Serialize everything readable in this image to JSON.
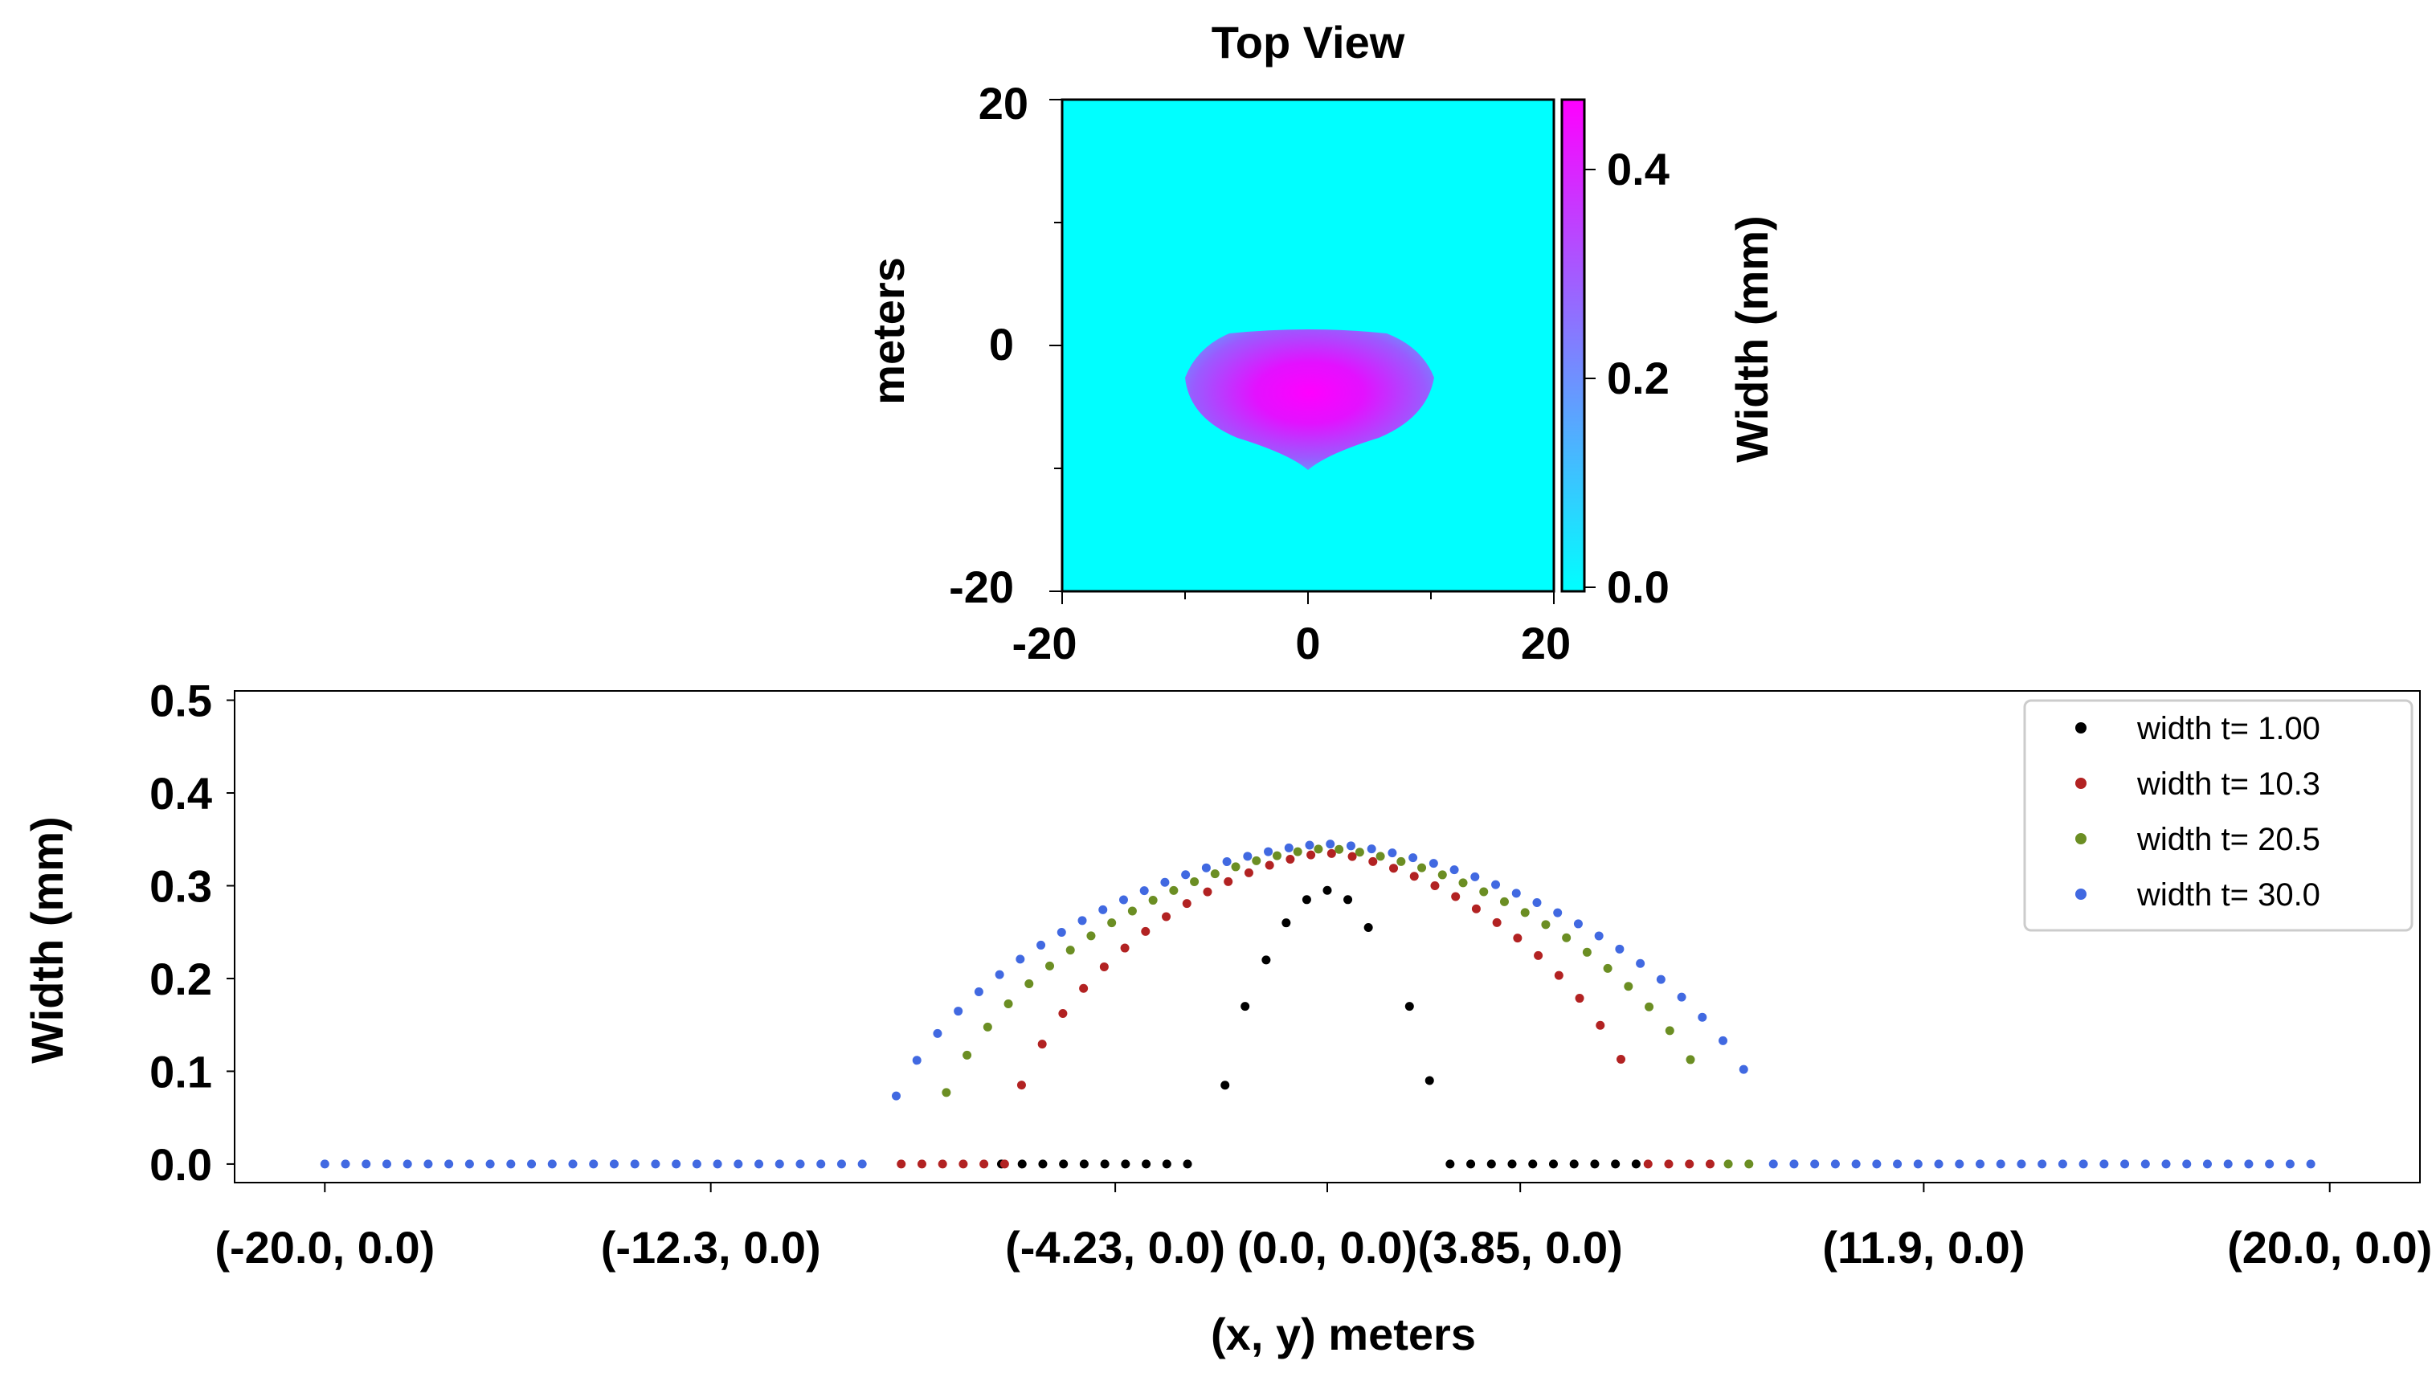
{
  "colors": {
    "background": "#ffffff",
    "heatmap_low": "#00ffff",
    "heatmap_high": "#ff00ff",
    "series": [
      "#000000",
      "#b22222",
      "#6b8e23",
      "#4169e1"
    ]
  },
  "chart_data": [
    {
      "type": "heatmap",
      "title": "Top View",
      "xlabel": "",
      "ylabel": "meters",
      "xlim": [
        -20,
        20
      ],
      "ylim": [
        -20,
        20
      ],
      "xticks": [
        "-20",
        "0",
        "20"
      ],
      "yticks": [
        "-20",
        "0",
        "20"
      ],
      "colormap": "cool",
      "colorbar": {
        "label": "Width (mm)",
        "range": [
          0.0,
          0.46
        ],
        "ticks": [
          "0.0",
          "0.2",
          "0.4"
        ]
      },
      "region": {
        "description_values": "crack opening region centered near (0, -4) m",
        "x_extent": [
          -10.5,
          10.5
        ],
        "y_extent": [
          -10.5,
          1.0
        ],
        "peak_value": 0.46
      }
    },
    {
      "type": "scatter",
      "title": "",
      "xlabel": "(x, y) meters",
      "ylabel": "Width (mm)",
      "xlim": [
        -21.8,
        21.8
      ],
      "ylim": [
        -0.02,
        0.51
      ],
      "xtick_values": [
        -20.0,
        -12.3,
        -4.23,
        0.0,
        3.85,
        11.9,
        20.0
      ],
      "xtick_labels": [
        "(-20.0, 0.0)",
        "(-12.3, 0.0)",
        "(-4.23, 0.0)",
        "(0.0, 0.0)",
        "(3.85, 0.0)",
        "(11.9, 0.0)",
        "(20.0, 0.0)"
      ],
      "yticks": [
        "0.0",
        "0.1",
        "0.2",
        "0.3",
        "0.4",
        "0.5"
      ],
      "legend_position": "top-right",
      "series": [
        {
          "name": "width t= 1.00",
          "color": "#000000",
          "nonzero_x": [
            -2.04,
            -1.64,
            -1.22,
            -0.82,
            -0.41,
            0.0,
            0.41,
            0.82,
            1.64,
            2.04
          ],
          "nonzero_y": [
            0.085,
            0.17,
            0.22,
            0.26,
            0.285,
            0.295,
            0.285,
            0.255,
            0.17,
            0.09
          ],
          "zero_x_ranges": [
            [
              -6.5,
              -2.45
            ],
            [
              2.45,
              6.5
            ]
          ]
        },
        {
          "name": "width t= 10.3",
          "color": "#b22222",
          "nonzero_y_peak": 0.335,
          "support": [
            -6.1,
            6.1
          ],
          "zero_x_ranges": [
            [
              -8.5,
              -6.4
            ],
            [
              6.4,
              8.0
            ]
          ]
        },
        {
          "name": "width t= 20.5",
          "color": "#6b8e23",
          "nonzero_y_peak": 0.34,
          "support": [
            -7.6,
            7.6
          ],
          "zero_x_ranges": [
            [
              8.0,
              8.8
            ]
          ]
        },
        {
          "name": "width t= 30.0",
          "color": "#4169e1",
          "nonzero_y_peak": 0.345,
          "support": [
            -8.6,
            8.6
          ],
          "zero_x_ranges": [
            [
              -20.0,
              -8.9
            ],
            [
              8.9,
              20.0
            ]
          ]
        }
      ]
    }
  ]
}
